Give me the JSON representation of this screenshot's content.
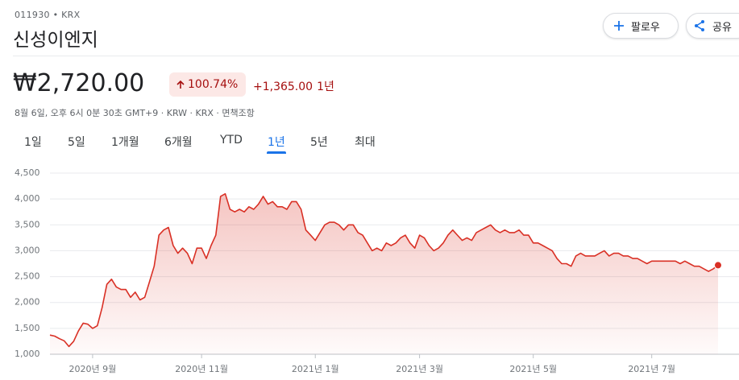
{
  "header": {
    "ticker": "011930 • KRX",
    "name": "신성이엔지",
    "follow": "팔로우",
    "share": "공유"
  },
  "quote": {
    "price": "₩2,720.00",
    "change_percent": "100.74%",
    "change_amount": "+1,365.00",
    "period": "1년",
    "meta": "8월 6일, 오후 6시 0분 30초 GMT+9 · KRW · KRX · 면책조항"
  },
  "tabs": [
    "1일",
    "5일",
    "1개월",
    "6개월",
    "YTD",
    "1년",
    "5년",
    "최대"
  ],
  "selected_tab": 5,
  "chart_data": {
    "type": "line",
    "color": "#d93025",
    "grid": true,
    "ylim": [
      1000,
      4500
    ],
    "yticks": [
      {
        "value": 1000,
        "label": "1,000"
      },
      {
        "value": 1500,
        "label": "1,500"
      },
      {
        "value": 2000,
        "label": "2,000"
      },
      {
        "value": 2500,
        "label": "2,500"
      },
      {
        "value": 3000,
        "label": "3,000"
      },
      {
        "value": 3500,
        "label": "3,500"
      },
      {
        "value": 4000,
        "label": "4,000"
      },
      {
        "value": 4500,
        "label": "4,500"
      }
    ],
    "categories": [
      null,
      null,
      null,
      null,
      null,
      null,
      null,
      null,
      null,
      "2020년 9월",
      null,
      null,
      null,
      null,
      null,
      null,
      null,
      null,
      null,
      null,
      null,
      null,
      null,
      null,
      null,
      null,
      null,
      null,
      null,
      null,
      null,
      null,
      "2020년 11월",
      null,
      null,
      null,
      null,
      null,
      null,
      null,
      null,
      null,
      null,
      null,
      null,
      null,
      null,
      null,
      null,
      null,
      null,
      null,
      null,
      null,
      null,
      null,
      "2021년 1월",
      null,
      null,
      null,
      null,
      null,
      null,
      null,
      null,
      null,
      null,
      null,
      null,
      null,
      null,
      null,
      null,
      null,
      null,
      null,
      null,
      null,
      "2021년 3월",
      null,
      null,
      null,
      null,
      null,
      null,
      null,
      null,
      null,
      null,
      null,
      null,
      null,
      null,
      null,
      null,
      null,
      null,
      null,
      null,
      null,
      null,
      null,
      "2021년 5월",
      null,
      null,
      null,
      null,
      null,
      null,
      null,
      null,
      null,
      null,
      null,
      null,
      null,
      null,
      null,
      null,
      null,
      null,
      null,
      null,
      null,
      null,
      null,
      null,
      "2021년 7월",
      null,
      null,
      null,
      null,
      null,
      null,
      null,
      null,
      null,
      null,
      null,
      null,
      null,
      null
    ],
    "values": [
      1370,
      1350,
      1300,
      1260,
      1150,
      1250,
      1450,
      1600,
      1580,
      1500,
      1550,
      1900,
      2350,
      2450,
      2300,
      2250,
      2250,
      2100,
      2200,
      2050,
      2100,
      2400,
      2700,
      3300,
      3400,
      3450,
      3100,
      2950,
      3050,
      2950,
      2750,
      3050,
      3050,
      2850,
      3100,
      3300,
      4050,
      4100,
      3800,
      3750,
      3800,
      3750,
      3850,
      3800,
      3900,
      4050,
      3900,
      3950,
      3850,
      3850,
      3800,
      3950,
      3950,
      3800,
      3400,
      3300,
      3200,
      3350,
      3500,
      3550,
      3550,
      3500,
      3400,
      3500,
      3500,
      3350,
      3300,
      3150,
      3000,
      3050,
      3000,
      3150,
      3100,
      3150,
      3250,
      3300,
      3150,
      3050,
      3300,
      3250,
      3100,
      3000,
      3050,
      3150,
      3300,
      3400,
      3300,
      3200,
      3250,
      3200,
      3350,
      3400,
      3450,
      3500,
      3400,
      3350,
      3400,
      3350,
      3350,
      3400,
      3300,
      3300,
      3150,
      3150,
      3100,
      3050,
      3000,
      2850,
      2750,
      2750,
      2700,
      2900,
      2950,
      2900,
      2900,
      2900,
      2950,
      3000,
      2900,
      2950,
      2950,
      2900,
      2900,
      2850,
      2850,
      2800,
      2750,
      2800,
      2800,
      2800,
      2800,
      2800,
      2800,
      2750,
      2800,
      2750,
      2700,
      2700,
      2650,
      2600,
      2650,
      2720
    ]
  }
}
